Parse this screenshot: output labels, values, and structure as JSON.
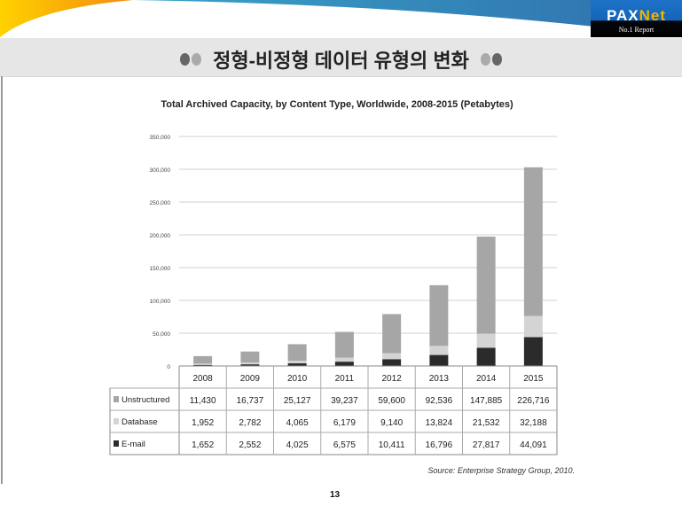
{
  "slide": {
    "title": "정형-비정형 데이터 유형의 변화",
    "page_number": "13",
    "logo": {
      "brand_left": "PA",
      "brand_x": "X",
      "brand_right": "Net",
      "tagline": "No.1 Report"
    }
  },
  "colors": {
    "unstructured": "#a6a6a6",
    "database": "#d4d4d4",
    "email": "#2b2b2b",
    "orange": "#f6a21a",
    "blue": "#2e7fb8"
  },
  "chart_data": {
    "type": "bar",
    "stacked": true,
    "title": "Total Archived Capacity, by Content Type, Worldwide, 2008-2015 (Petabytes)",
    "categories": [
      "2008",
      "2009",
      "2010",
      "2011",
      "2012",
      "2013",
      "2014",
      "2015"
    ],
    "series": [
      {
        "name": "E-mail",
        "values": [
          1652,
          2552,
          4025,
          6575,
          10411,
          16796,
          27817,
          44091
        ],
        "labels": [
          "1,652",
          "2,552",
          "4,025",
          "6,575",
          "10,411",
          "16,796",
          "27,817",
          "44,091"
        ]
      },
      {
        "name": "Database",
        "values": [
          1952,
          2782,
          4065,
          6179,
          9140,
          13824,
          21532,
          32188
        ],
        "labels": [
          "1,952",
          "2,782",
          "4,065",
          "6,179",
          "9,140",
          "13,824",
          "21,532",
          "32,188"
        ]
      },
      {
        "name": "Unstructured",
        "values": [
          11430,
          16737,
          25127,
          39237,
          59600,
          92536,
          147885,
          226716
        ],
        "labels": [
          "11,430",
          "16,737",
          "25,127",
          "39,237",
          "59,600",
          "92,536",
          "147,885",
          "226,716"
        ]
      }
    ],
    "table_row_order": [
      "Unstructured",
      "Database",
      "E-mail"
    ],
    "ylim": [
      0,
      350000
    ],
    "yticks": [
      0,
      50000,
      100000,
      150000,
      200000,
      250000,
      300000,
      350000
    ],
    "ytick_labels": [
      "0",
      "50,000",
      "100,000",
      "150,000",
      "200,000",
      "250,000",
      "300,000",
      "350,000"
    ],
    "grid": true,
    "legend": "data-table-below",
    "source": "Source: Enterprise Strategy Group, 2010."
  }
}
